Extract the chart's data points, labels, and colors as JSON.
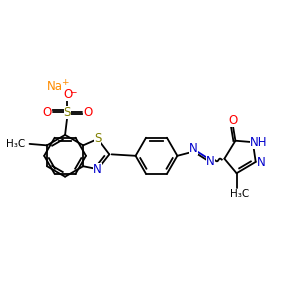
{
  "background_color": "#ffffff",
  "figsize": [
    3.0,
    3.0
  ],
  "dpi": 100,
  "bond_color": "#000000",
  "bond_lw": 1.3,
  "o_color": "#ff0000",
  "n_color": "#0000cc",
  "s_color": "#808000",
  "na_color": "#ff8c00",
  "font_size": 8.5,
  "small_font": 7.0,
  "xlim": [
    0,
    10
  ],
  "ylim": [
    0,
    10
  ]
}
